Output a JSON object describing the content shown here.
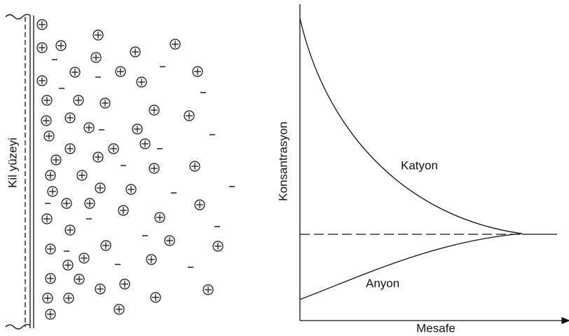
{
  "left_panel": {
    "surface_label": "Kil yüzeyi"
  },
  "graph": {
    "y_axis_label": "Konsantrasyon",
    "x_axis_label": "Mesafe",
    "curves": [
      {
        "label": "Katyon"
      },
      {
        "label": "Anyon"
      }
    ]
  }
}
